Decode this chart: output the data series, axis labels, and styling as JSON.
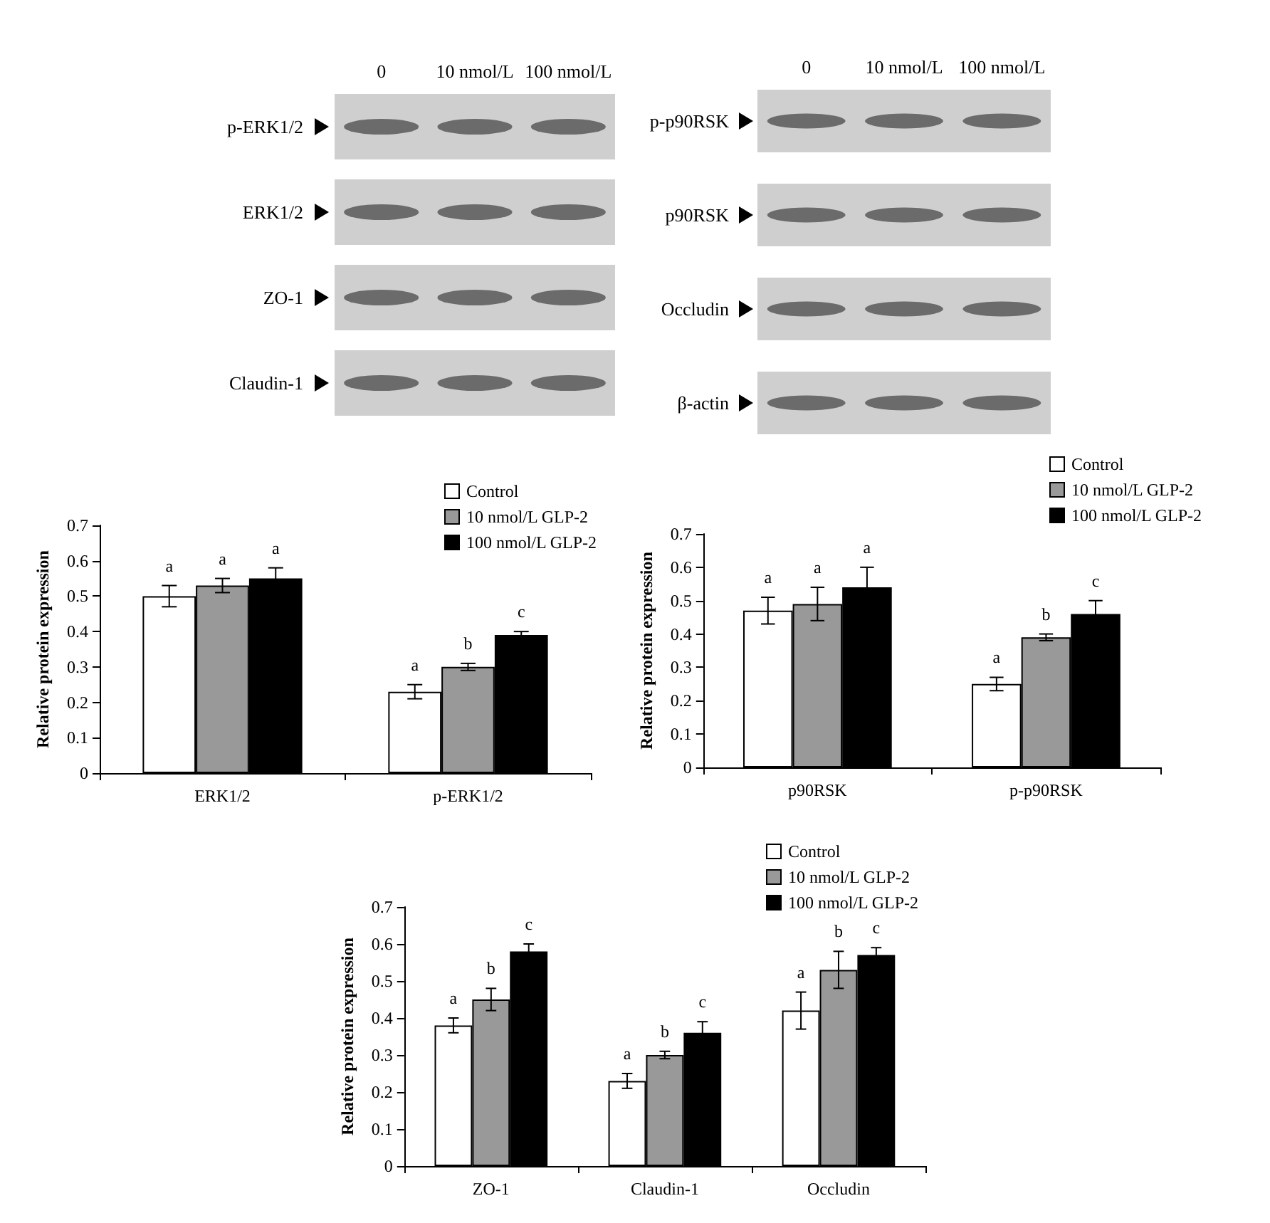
{
  "chart_data": [
    {
      "type": "other",
      "categories": [
        "0",
        "10 nmol/L",
        "100 nmol/L"
      ],
      "y_categories": [
        "p-ERK1/2",
        "ERK1/2",
        "ZO-1",
        "Claudin-1"
      ]
    },
    {
      "type": "other",
      "categories": [
        "0",
        "10 nmol/L",
        "100 nmol/L"
      ],
      "y_categories": [
        "p-p90RSK",
        "p90RSK",
        "Occludin",
        "β-actin"
      ]
    },
    {
      "type": "bar",
      "ylabel": "Relative protein expression",
      "categories": [
        "ERK1/2",
        "p-ERK1/2"
      ],
      "series": [
        {
          "name": "Control",
          "color": "#ffffff",
          "values": [
            0.5,
            0.23
          ],
          "errors": [
            0.03,
            0.02
          ],
          "value_labels": [
            "a",
            "a"
          ]
        },
        {
          "name": "10 nmol/L GLP-2",
          "color": "#999999",
          "values": [
            0.53,
            0.3
          ],
          "errors": [
            0.02,
            0.01
          ],
          "value_labels": [
            "a",
            "b"
          ]
        },
        {
          "name": "100 nmol/L GLP-2",
          "color": "#000000",
          "values": [
            0.55,
            0.39
          ],
          "errors": [
            0.03,
            0.01
          ],
          "value_labels": [
            "a",
            "c"
          ]
        }
      ],
      "ylim": [
        0,
        0.7
      ],
      "yticks": [
        0,
        0.1,
        0.2,
        0.3,
        0.4,
        0.5,
        0.6,
        0.7
      ],
      "legend": "top right"
    },
    {
      "type": "bar",
      "ylabel": "Relative protein expression",
      "categories": [
        "p90RSK",
        "p-p90RSK"
      ],
      "series": [
        {
          "name": "Control",
          "color": "#ffffff",
          "values": [
            0.47,
            0.25
          ],
          "errors": [
            0.04,
            0.02
          ],
          "value_labels": [
            "a",
            "a"
          ]
        },
        {
          "name": "10 nmol/L GLP-2",
          "color": "#999999",
          "values": [
            0.49,
            0.39
          ],
          "errors": [
            0.05,
            0.01
          ],
          "value_labels": [
            "a",
            "b"
          ]
        },
        {
          "name": "100 nmol/L GLP-2",
          "color": "#000000",
          "values": [
            0.54,
            0.46
          ],
          "errors": [
            0.06,
            0.04
          ],
          "value_labels": [
            "a",
            "c"
          ]
        }
      ],
      "ylim": [
        0,
        0.7
      ],
      "yticks": [
        0,
        0.1,
        0.2,
        0.3,
        0.4,
        0.5,
        0.6,
        0.7
      ],
      "legend": "top right"
    },
    {
      "type": "bar",
      "ylabel": "Relative protein expression",
      "categories": [
        "ZO-1",
        "Claudin-1",
        "Occludin"
      ],
      "series": [
        {
          "name": "Control",
          "color": "#ffffff",
          "values": [
            0.38,
            0.23,
            0.42
          ],
          "errors": [
            0.02,
            0.02,
            0.05
          ],
          "value_labels": [
            "a",
            "a",
            "a"
          ]
        },
        {
          "name": "10 nmol/L GLP-2",
          "color": "#999999",
          "values": [
            0.45,
            0.3,
            0.53
          ],
          "errors": [
            0.03,
            0.01,
            0.05
          ],
          "value_labels": [
            "b",
            "b",
            "b"
          ]
        },
        {
          "name": "100 nmol/L GLP-2",
          "color": "#000000",
          "values": [
            0.58,
            0.36,
            0.57
          ],
          "errors": [
            0.02,
            0.03,
            0.02
          ],
          "value_labels": [
            "c",
            "c",
            "c"
          ]
        }
      ],
      "ylim": [
        0,
        0.7
      ],
      "yticks": [
        0,
        0.1,
        0.2,
        0.3,
        0.4,
        0.5,
        0.6,
        0.7
      ],
      "legend": "top right"
    }
  ]
}
